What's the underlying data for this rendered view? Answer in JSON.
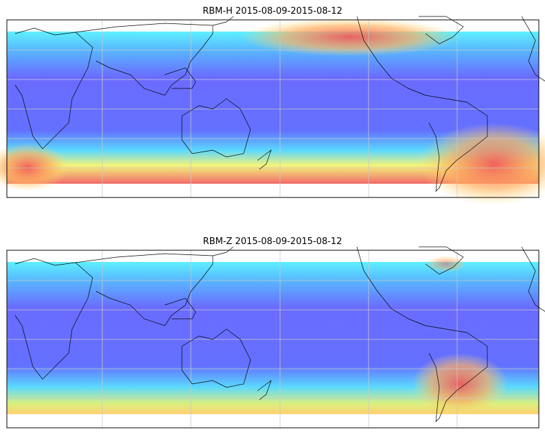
{
  "panels": [
    {
      "title": "RBM-H 2015-08-09-2015-08-12"
    },
    {
      "title": "RBM-Z 2015-08-09-2015-08-12"
    }
  ]
}
